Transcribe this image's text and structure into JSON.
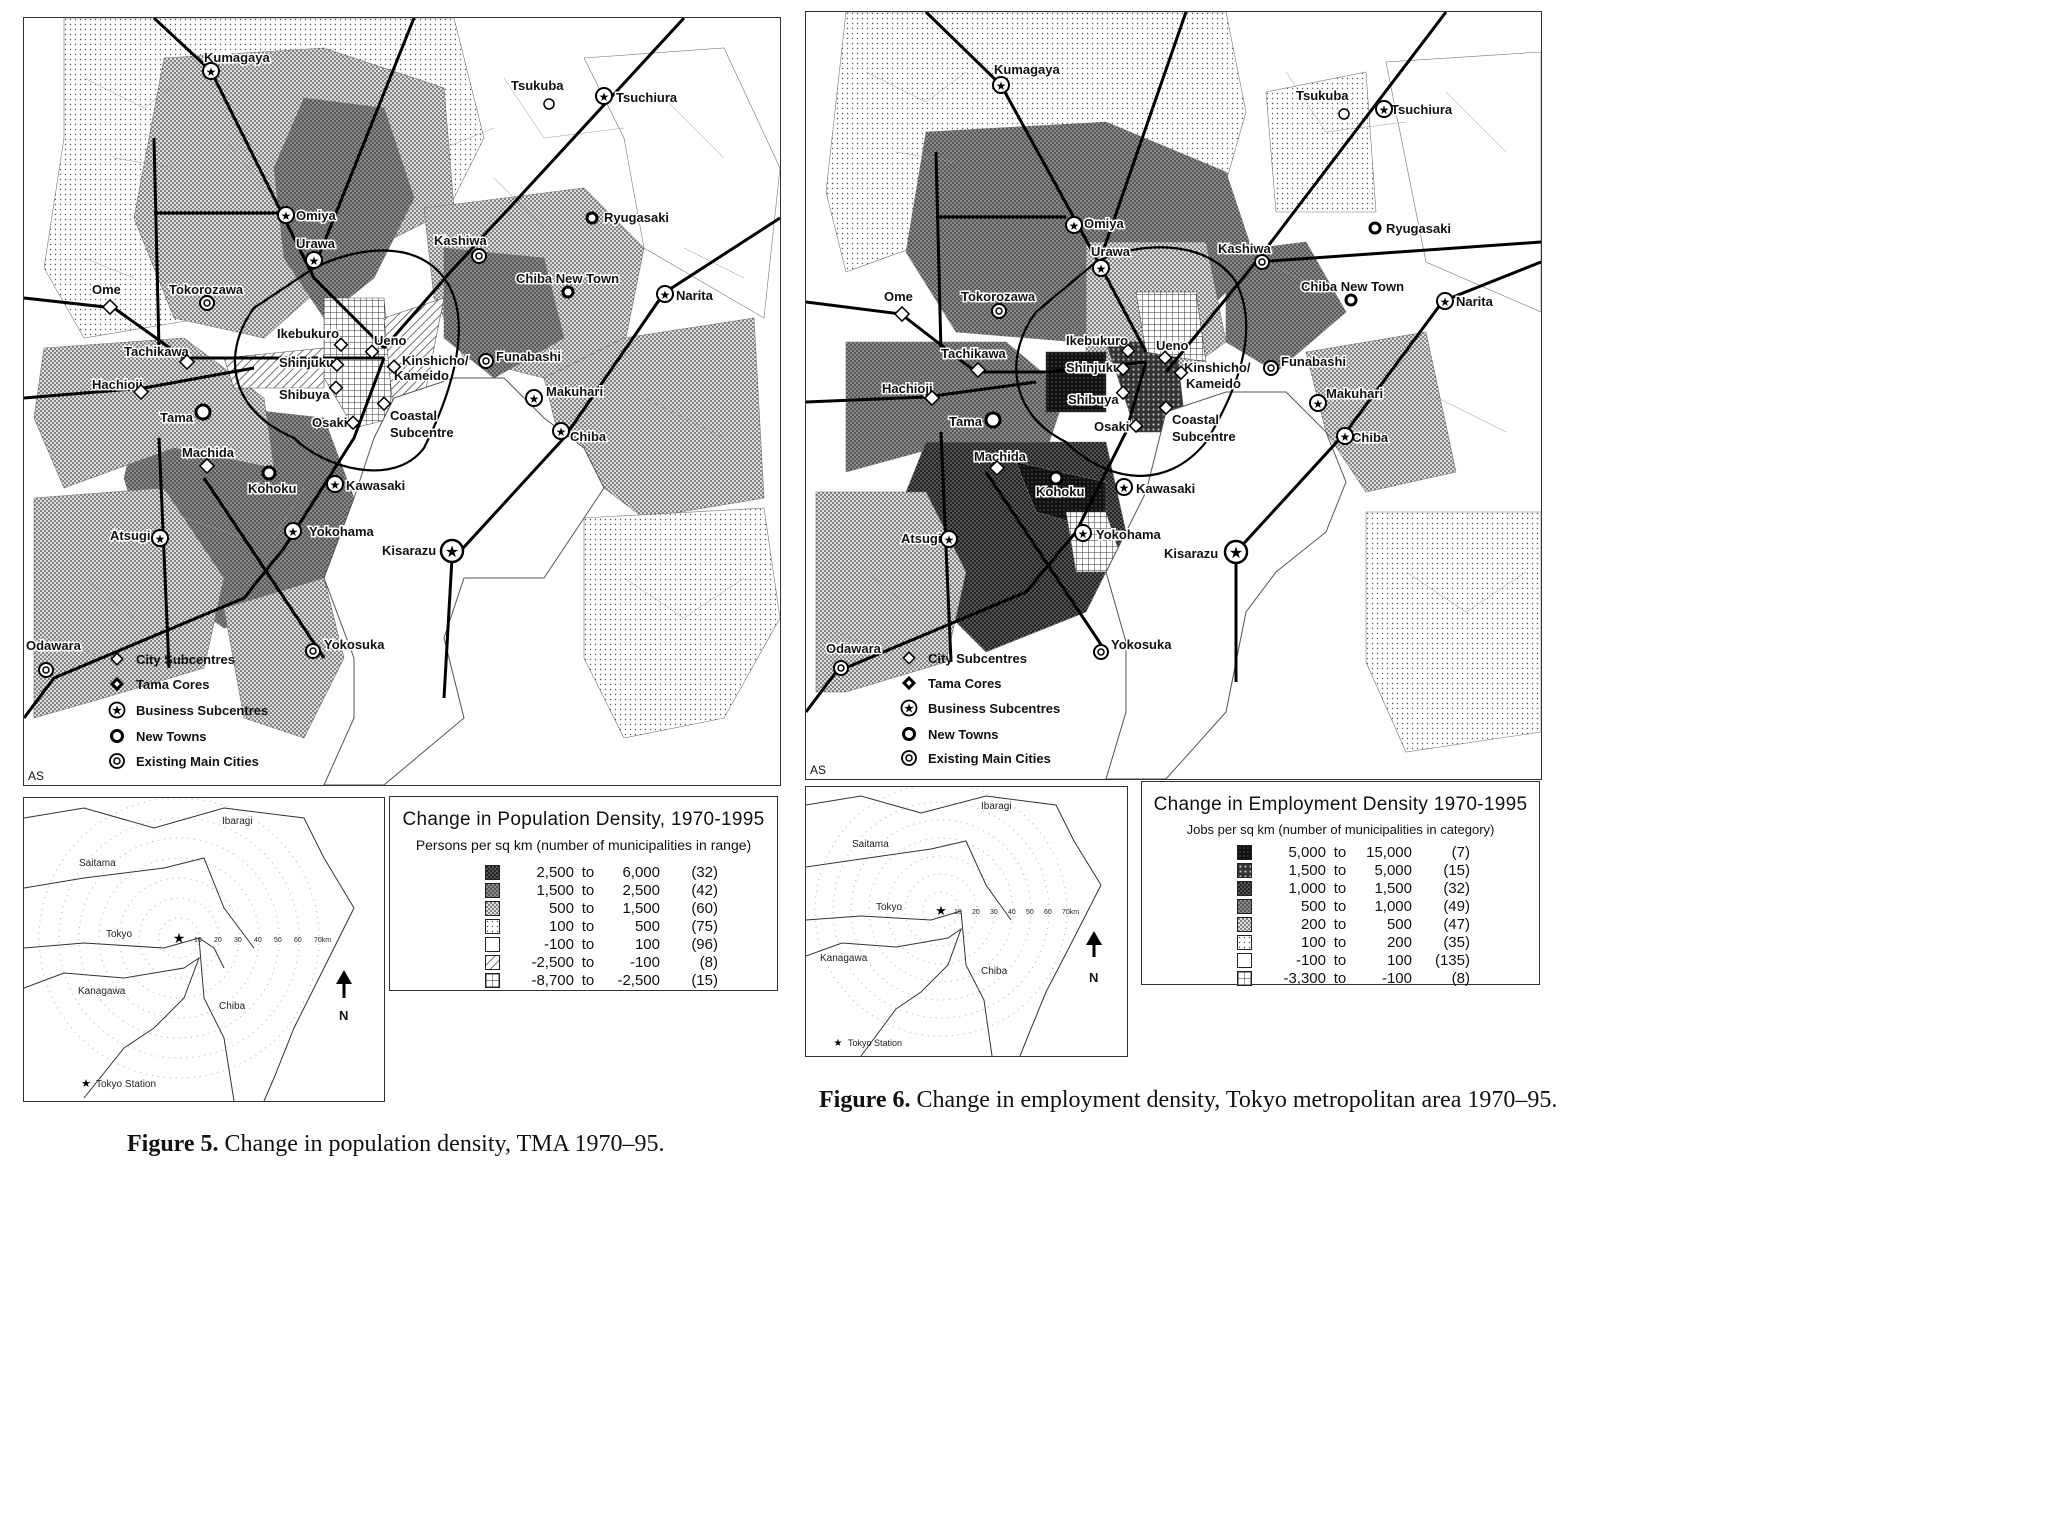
{
  "figure5": {
    "caption_num": "Figure 5.",
    "caption_text": " Change in population density, TMA 1970–95.",
    "credit": "AS",
    "cities": {
      "kumagaya": "Kumagaya",
      "tsukuba": "Tsukuba",
      "tsuchiura": "Tsuchiura",
      "omiya": "Omiya",
      "ryugasaki": "Ryugasaki",
      "urawa": "Urawa",
      "kashiwa": "Kashiwa",
      "chiba_nt": "Chiba New Town",
      "narita": "Narita",
      "ome": "Ome",
      "tokorozawa": "Tokorozawa",
      "ikebukuro": "Ikebukuro",
      "ueno": "Ueno",
      "tachikawa": "Tachikawa",
      "shinjuku": "Shinjuku",
      "kinshicho": "Kinshicho/",
      "kameido": "Kameido",
      "funabashi": "Funabashi",
      "hachioji": "Hachioji",
      "shibuya": "Shibuya",
      "makuhari": "Makuhari",
      "tama": "Tama",
      "osaki": "Osaki",
      "coastal1": "Coastal",
      "coastal2": "Subcentre",
      "chiba": "Chiba",
      "machida": "Machida",
      "kohoku": "Kohoku",
      "kawasaki": "Kawasaki",
      "yokohama": "Yokohama",
      "atsugi": "Atsugi",
      "kisarazu": "Kisarazu",
      "odawara": "Odawara",
      "yokosuka": "Yokosuka"
    },
    "key": [
      "City Subcentres",
      "Tama Cores",
      "Business Subcentres",
      "New Towns",
      "Existing Main Cities"
    ],
    "inset": {
      "ibaragi": "Ibaragi",
      "saitama": "Saitama",
      "tokyo": "Tokyo",
      "kanagawa": "Kanagawa",
      "chiba": "Chiba",
      "station": "Tokyo Station",
      "north": "N",
      "rings": [
        "10",
        "20",
        "30",
        "40",
        "50",
        "60",
        "70km"
      ]
    },
    "legend": {
      "title": "Change in Population Density, 1970-1995",
      "subtitle": "Persons per sq km (number of municipalities in range)",
      "rows": [
        {
          "from": "2,500",
          "to": "6,000",
          "count": "(32)",
          "pattern": "p5"
        },
        {
          "from": "1,500",
          "to": "2,500",
          "count": "(42)",
          "pattern": "p4"
        },
        {
          "from": "500",
          "to": "1,500",
          "count": "(60)",
          "pattern": "p3"
        },
        {
          "from": "100",
          "to": "500",
          "count": "(75)",
          "pattern": "p2"
        },
        {
          "from": "-100",
          "to": "100",
          "count": "(96)",
          "pattern": "p0"
        },
        {
          "from": "-2,500",
          "to": "-100",
          "count": "(8)",
          "pattern": "phatch"
        },
        {
          "from": "-8,700",
          "to": "-2,500",
          "count": "(15)",
          "pattern": "pgrid"
        }
      ],
      "to_word": "to"
    }
  },
  "figure6": {
    "caption_num": "Figure 6.",
    "caption_text": " Change in employment density, Tokyo metropolitan area 1970–95.",
    "credit": "AS",
    "key": [
      "City Subcentres",
      "Tama Cores",
      "Business Subcentres",
      "New Towns",
      "Existing Main Cities"
    ],
    "inset": {
      "ibaragi": "Ibaragi",
      "saitama": "Saitama",
      "tokyo": "Tokyo",
      "kanagawa": "Kanagawa",
      "chiba": "Chiba",
      "station": "Tokyo Station",
      "north": "N",
      "rings": [
        "10",
        "20",
        "30",
        "40",
        "50",
        "60",
        "70km"
      ]
    },
    "legend": {
      "title": "Change in Employment Density 1970-1995",
      "subtitle": "Jobs per sq km (number of municipalities in category)",
      "rows": [
        {
          "from": "5,000",
          "to": "15,000",
          "count": "(7)",
          "pattern": "p6"
        },
        {
          "from": "1,500",
          "to": "5,000",
          "count": "(15)",
          "pattern": "p5b"
        },
        {
          "from": "1,000",
          "to": "1,500",
          "count": "(32)",
          "pattern": "p5"
        },
        {
          "from": "500",
          "to": "1,000",
          "count": "(49)",
          "pattern": "p4"
        },
        {
          "from": "200",
          "to": "500",
          "count": "(47)",
          "pattern": "p3"
        },
        {
          "from": "100",
          "to": "200",
          "count": "(35)",
          "pattern": "p2"
        },
        {
          "from": "-100",
          "to": "100",
          "count": "(135)",
          "pattern": "p0"
        },
        {
          "from": "-3,300",
          "to": "-100",
          "count": "(8)",
          "pattern": "pgrid"
        }
      ],
      "to_word": "to"
    }
  }
}
